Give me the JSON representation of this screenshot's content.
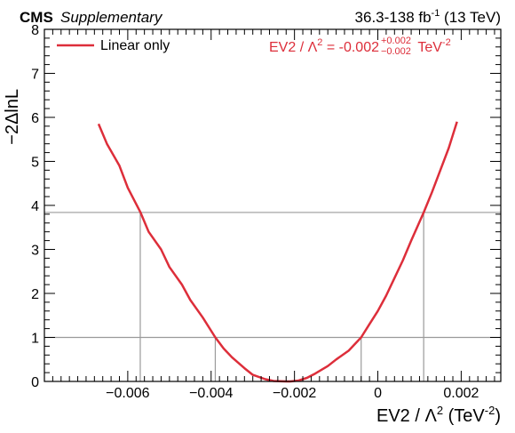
{
  "colors": {
    "curve": "#dd2e3a",
    "reference": "#9a9a9a",
    "frame": "#000000",
    "background": "#ffffff"
  },
  "header": {
    "experiment": "CMS",
    "qualifier": "Supplementary",
    "lumi_prefix": "36.3-138 fb",
    "lumi_exp": "-1",
    "lumi_suffix": " (13 TeV)"
  },
  "legend": {
    "entry": "Linear only"
  },
  "result": {
    "prefix": "EV2 / Λ",
    "prefix_exp": "2",
    "value": " = -0.002",
    "err_up": "+0.002",
    "err_down": "−0.002",
    "unit": " TeV",
    "unit_exp": "-2"
  },
  "chart_data": {
    "type": "line",
    "title": "",
    "xlabel": "EV2 / Λ² (TeV⁻²)",
    "xlabel_parts": {
      "main": "EV2 / Λ",
      "sup": "2",
      "unit": " (TeV",
      "unit_sup": "-2",
      "close": ")"
    },
    "ylabel": "−2ΔlnL",
    "xlim": [
      -0.008,
      0.00295
    ],
    "ylim": [
      0,
      8
    ],
    "x_ticks": [
      -0.006,
      -0.004,
      -0.002,
      0,
      0.002
    ],
    "x_tick_labels": [
      "−0.006",
      "−0.004",
      "−0.002",
      "0",
      "0.002"
    ],
    "y_ticks": [
      0,
      1,
      2,
      3,
      4,
      5,
      6,
      7,
      8
    ],
    "y_tick_labels": [
      "0",
      "1",
      "2",
      "3",
      "4",
      "5",
      "6",
      "7",
      "8"
    ],
    "reference_levels": [
      1.0,
      3.84
    ],
    "interval_1sigma": [
      -0.0039,
      -0.0004
    ],
    "interval_95": [
      -0.0057,
      0.0011
    ],
    "best_fit": -0.0021,
    "series": [
      {
        "name": "Linear only",
        "x": [
          -0.0067,
          -0.0065,
          -0.0062,
          -0.006,
          -0.0057,
          -0.0055,
          -0.0052,
          -0.005,
          -0.0047,
          -0.0045,
          -0.0042,
          -0.0039,
          -0.0037,
          -0.0035,
          -0.0032,
          -0.003,
          -0.0027,
          -0.0025,
          -0.0022,
          -0.0021,
          -0.0019,
          -0.0017,
          -0.0015,
          -0.0012,
          -0.001,
          -0.0007,
          -0.0004,
          -0.0002,
          0.0,
          0.0002,
          0.0004,
          0.0006,
          0.0008,
          0.0011,
          0.0013,
          0.0015,
          0.0017,
          0.0019
        ],
        "y": [
          5.85,
          5.4,
          4.9,
          4.4,
          3.85,
          3.4,
          3.0,
          2.6,
          2.2,
          1.85,
          1.45,
          1.0,
          0.75,
          0.55,
          0.3,
          0.15,
          0.05,
          0.01,
          0.0,
          0.0,
          0.02,
          0.08,
          0.18,
          0.35,
          0.5,
          0.7,
          1.0,
          1.3,
          1.6,
          1.95,
          2.35,
          2.75,
          3.2,
          3.84,
          4.3,
          4.8,
          5.3,
          5.9
        ]
      }
    ]
  }
}
